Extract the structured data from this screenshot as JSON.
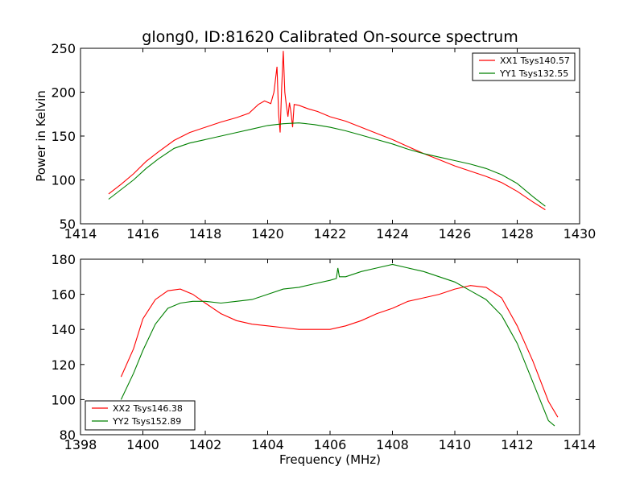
{
  "figure": {
    "title": "glong0, ID:81620 Calibrated On-source spectrum"
  },
  "chart_data": [
    {
      "type": "line",
      "title": "glong0, ID:81620 Calibrated On-source spectrum",
      "xlabel": "",
      "ylabel": "Power in Kelvin",
      "xlim": [
        1414,
        1430
      ],
      "ylim": [
        50,
        250
      ],
      "xticks": [
        1414,
        1416,
        1418,
        1420,
        1422,
        1424,
        1426,
        1428,
        1430
      ],
      "yticks": [
        50,
        100,
        150,
        200,
        250
      ],
      "legend_position": "top-right",
      "grid": false,
      "series": [
        {
          "name": "XX1 Tsys140.57",
          "color": "#ff0000",
          "points": [
            [
              1414.9,
              84
            ],
            [
              1415.3,
              95
            ],
            [
              1415.7,
              107
            ],
            [
              1416.1,
              121
            ],
            [
              1416.5,
              132
            ],
            [
              1417.0,
              145
            ],
            [
              1417.5,
              154
            ],
            [
              1418.0,
              160
            ],
            [
              1418.5,
              166
            ],
            [
              1419.0,
              171
            ],
            [
              1419.4,
              176
            ],
            [
              1419.7,
              186
            ],
            [
              1419.9,
              190
            ],
            [
              1420.1,
              187
            ],
            [
              1420.2,
              200
            ],
            [
              1420.3,
              229
            ],
            [
              1420.35,
              175
            ],
            [
              1420.4,
              154
            ],
            [
              1420.45,
              205
            ],
            [
              1420.5,
              247
            ],
            [
              1420.55,
              200
            ],
            [
              1420.6,
              185
            ],
            [
              1420.65,
              172
            ],
            [
              1420.7,
              188
            ],
            [
              1420.75,
              176
            ],
            [
              1420.8,
              160
            ],
            [
              1420.85,
              186
            ],
            [
              1421.0,
              185
            ],
            [
              1421.3,
              181
            ],
            [
              1421.6,
              178
            ],
            [
              1422.0,
              172
            ],
            [
              1422.5,
              167
            ],
            [
              1423.0,
              160
            ],
            [
              1423.5,
              153
            ],
            [
              1424.0,
              146
            ],
            [
              1424.5,
              138
            ],
            [
              1425.0,
              130
            ],
            [
              1425.5,
              123
            ],
            [
              1426.0,
              116
            ],
            [
              1426.5,
              110
            ],
            [
              1427.0,
              104
            ],
            [
              1427.5,
              97
            ],
            [
              1428.0,
              87
            ],
            [
              1428.5,
              75
            ],
            [
              1428.9,
              66
            ]
          ]
        },
        {
          "name": "YY1 Tsys132.55",
          "color": "#008000",
          "points": [
            [
              1414.9,
              78
            ],
            [
              1415.3,
              89
            ],
            [
              1415.7,
              100
            ],
            [
              1416.1,
              113
            ],
            [
              1416.5,
              124
            ],
            [
              1417.0,
              136
            ],
            [
              1417.5,
              142
            ],
            [
              1418.0,
              146
            ],
            [
              1418.5,
              150
            ],
            [
              1419.0,
              154
            ],
            [
              1419.5,
              158
            ],
            [
              1420.0,
              162
            ],
            [
              1420.5,
              164
            ],
            [
              1421.0,
              165
            ],
            [
              1421.5,
              163
            ],
            [
              1422.0,
              160
            ],
            [
              1422.5,
              156
            ],
            [
              1423.0,
              151
            ],
            [
              1423.5,
              146
            ],
            [
              1424.0,
              141
            ],
            [
              1424.5,
              135
            ],
            [
              1425.0,
              130
            ],
            [
              1425.5,
              126
            ],
            [
              1426.0,
              122
            ],
            [
              1426.5,
              118
            ],
            [
              1427.0,
              113
            ],
            [
              1427.5,
              106
            ],
            [
              1428.0,
              96
            ],
            [
              1428.5,
              81
            ],
            [
              1428.9,
              70
            ]
          ]
        }
      ]
    },
    {
      "type": "line",
      "title": "",
      "xlabel": "Frequency (MHz)",
      "ylabel": "",
      "xlim": [
        1398,
        1414
      ],
      "ylim": [
        80,
        180
      ],
      "xticks": [
        1398,
        1400,
        1402,
        1404,
        1406,
        1408,
        1410,
        1412,
        1414
      ],
      "yticks": [
        80,
        100,
        120,
        140,
        160,
        180
      ],
      "legend_position": "bottom-left",
      "grid": false,
      "series": [
        {
          "name": "XX2 Tsys146.38",
          "color": "#ff0000",
          "points": [
            [
              1399.3,
              113
            ],
            [
              1399.7,
              129
            ],
            [
              1400.0,
              146
            ],
            [
              1400.4,
              157
            ],
            [
              1400.8,
              162
            ],
            [
              1401.2,
              163
            ],
            [
              1401.6,
              160
            ],
            [
              1402.0,
              155
            ],
            [
              1402.5,
              149
            ],
            [
              1403.0,
              145
            ],
            [
              1403.5,
              143
            ],
            [
              1404.0,
              142
            ],
            [
              1404.5,
              141
            ],
            [
              1405.0,
              140
            ],
            [
              1405.5,
              140
            ],
            [
              1406.0,
              140
            ],
            [
              1406.5,
              142
            ],
            [
              1407.0,
              145
            ],
            [
              1407.5,
              149
            ],
            [
              1408.0,
              152
            ],
            [
              1408.5,
              156
            ],
            [
              1409.0,
              158
            ],
            [
              1409.5,
              160
            ],
            [
              1410.0,
              163
            ],
            [
              1410.5,
              165
            ],
            [
              1411.0,
              164
            ],
            [
              1411.5,
              158
            ],
            [
              1412.0,
              142
            ],
            [
              1412.5,
              122
            ],
            [
              1413.0,
              99
            ],
            [
              1413.3,
              90
            ]
          ]
        },
        {
          "name": "YY2 Tsys152.89",
          "color": "#008000",
          "points": [
            [
              1399.3,
              100
            ],
            [
              1399.7,
              115
            ],
            [
              1400.0,
              128
            ],
            [
              1400.4,
              143
            ],
            [
              1400.8,
              152
            ],
            [
              1401.2,
              155
            ],
            [
              1401.6,
              156
            ],
            [
              1402.0,
              156
            ],
            [
              1402.5,
              155
            ],
            [
              1403.0,
              156
            ],
            [
              1403.5,
              157
            ],
            [
              1404.0,
              160
            ],
            [
              1404.5,
              163
            ],
            [
              1405.0,
              164
            ],
            [
              1405.5,
              166
            ],
            [
              1406.0,
              168
            ],
            [
              1406.2,
              169
            ],
            [
              1406.25,
              175
            ],
            [
              1406.3,
              170
            ],
            [
              1406.5,
              170
            ],
            [
              1407.0,
              173
            ],
            [
              1407.5,
              175
            ],
            [
              1408.0,
              177
            ],
            [
              1408.5,
              175
            ],
            [
              1409.0,
              173
            ],
            [
              1409.5,
              170
            ],
            [
              1410.0,
              167
            ],
            [
              1410.5,
              162
            ],
            [
              1411.0,
              157
            ],
            [
              1411.5,
              148
            ],
            [
              1412.0,
              132
            ],
            [
              1412.5,
              110
            ],
            [
              1413.0,
              88
            ],
            [
              1413.2,
              85
            ]
          ]
        }
      ]
    }
  ]
}
